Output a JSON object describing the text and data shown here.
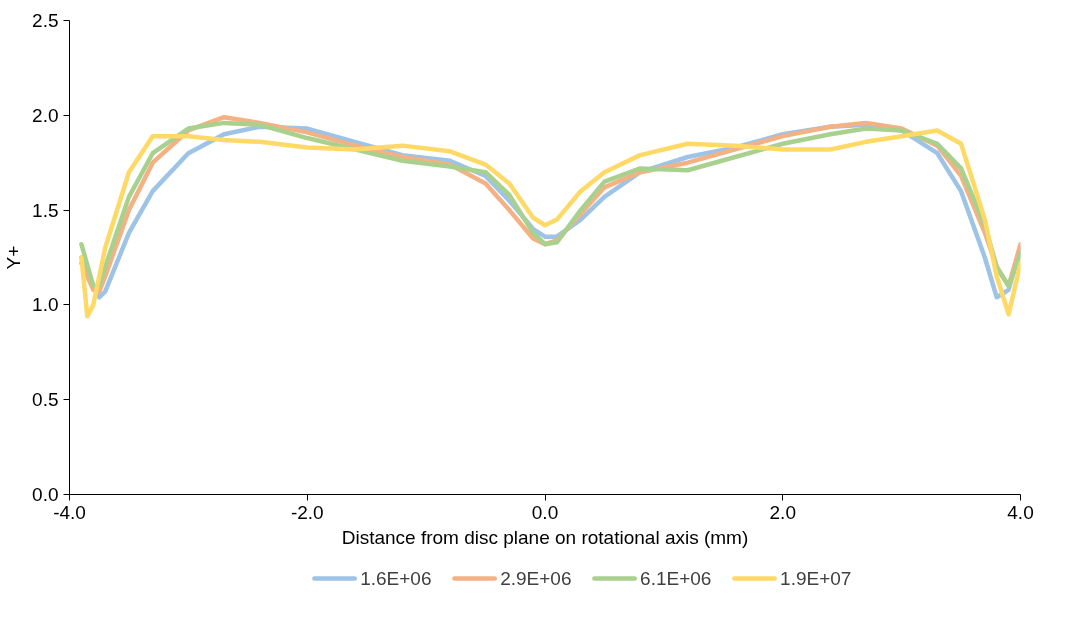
{
  "chart_data": {
    "type": "line",
    "xlabel": "Distance from disc plane on rotational axis (mm)",
    "ylabel": "Y+",
    "xlim": [
      -4,
      4
    ],
    "ylim": [
      0,
      2.5
    ],
    "xticks": [
      {
        "value": -4,
        "label": "-4.0"
      },
      {
        "value": -2,
        "label": "-2.0"
      },
      {
        "value": 0,
        "label": "0.0"
      },
      {
        "value": 2,
        "label": "2.0"
      },
      {
        "value": 4,
        "label": "4.0"
      }
    ],
    "yticks": [
      {
        "value": 0,
        "label": "0.0"
      },
      {
        "value": 0.5,
        "label": "0.5"
      },
      {
        "value": 1,
        "label": "1.0"
      },
      {
        "value": 1.5,
        "label": "1.5"
      },
      {
        "value": 2,
        "label": "2.0"
      },
      {
        "value": 2.5,
        "label": "2.5"
      }
    ],
    "grid": false,
    "legend": "bottom",
    "marker": "none",
    "line_style": "solid",
    "series": [
      {
        "name": "1.6E+06",
        "color": "#9dc3e6",
        "x": [
          -3.9,
          -3.8,
          -3.75,
          -3.7,
          -3.5,
          -3.3,
          -3.0,
          -2.7,
          -2.4,
          -2.0,
          -1.6,
          -1.2,
          -0.8,
          -0.5,
          -0.3,
          -0.1,
          0,
          0.1,
          0.3,
          0.5,
          0.8,
          1.2,
          1.6,
          2.0,
          2.4,
          2.7,
          3.0,
          3.3,
          3.5,
          3.7,
          3.8,
          3.9,
          4.0
        ],
        "values": [
          1.25,
          1.1,
          1.04,
          1.07,
          1.38,
          1.6,
          1.8,
          1.9,
          1.94,
          1.93,
          1.86,
          1.79,
          1.76,
          1.68,
          1.55,
          1.4,
          1.36,
          1.36,
          1.45,
          1.57,
          1.7,
          1.78,
          1.83,
          1.9,
          1.94,
          1.95,
          1.92,
          1.8,
          1.6,
          1.25,
          1.04,
          1.08,
          1.3
        ]
      },
      {
        "name": "2.9E+06",
        "color": "#f4b183",
        "x": [
          -3.9,
          -3.8,
          -3.75,
          -3.7,
          -3.5,
          -3.3,
          -3.0,
          -2.7,
          -2.4,
          -2.0,
          -1.6,
          -1.2,
          -0.8,
          -0.5,
          -0.3,
          -0.1,
          0,
          0.1,
          0.3,
          0.5,
          0.8,
          1.2,
          1.6,
          2.0,
          2.4,
          2.7,
          3.0,
          3.3,
          3.5,
          3.7,
          3.8,
          3.9,
          4.0
        ],
        "values": [
          1.22,
          1.08,
          1.07,
          1.15,
          1.5,
          1.75,
          1.92,
          1.99,
          1.96,
          1.91,
          1.84,
          1.78,
          1.74,
          1.64,
          1.5,
          1.35,
          1.32,
          1.34,
          1.48,
          1.62,
          1.7,
          1.75,
          1.82,
          1.89,
          1.94,
          1.96,
          1.93,
          1.84,
          1.68,
          1.38,
          1.2,
          1.1,
          1.32
        ]
      },
      {
        "name": "6.1E+06",
        "color": "#a9d18e",
        "x": [
          -3.9,
          -3.8,
          -3.75,
          -3.7,
          -3.5,
          -3.3,
          -3.0,
          -2.7,
          -2.4,
          -2.0,
          -1.6,
          -1.2,
          -0.8,
          -0.5,
          -0.3,
          -0.1,
          0,
          0.1,
          0.3,
          0.5,
          0.8,
          1.2,
          1.6,
          2.0,
          2.4,
          2.7,
          3.0,
          3.3,
          3.5,
          3.7,
          3.8,
          3.9,
          4.0
        ],
        "values": [
          1.32,
          1.1,
          1.1,
          1.2,
          1.57,
          1.8,
          1.93,
          1.96,
          1.95,
          1.88,
          1.82,
          1.76,
          1.73,
          1.7,
          1.58,
          1.38,
          1.32,
          1.33,
          1.5,
          1.65,
          1.72,
          1.71,
          1.78,
          1.85,
          1.9,
          1.93,
          1.92,
          1.85,
          1.72,
          1.42,
          1.2,
          1.1,
          1.27
        ]
      },
      {
        "name": "1.9E+07",
        "color": "#ffd966",
        "x": [
          -3.9,
          -3.85,
          -3.8,
          -3.7,
          -3.5,
          -3.3,
          -3.0,
          -2.7,
          -2.4,
          -2.0,
          -1.6,
          -1.2,
          -0.8,
          -0.5,
          -0.3,
          -0.1,
          0,
          0.1,
          0.3,
          0.5,
          0.8,
          1.2,
          1.6,
          2.0,
          2.4,
          2.7,
          3.0,
          3.3,
          3.5,
          3.7,
          3.8,
          3.9,
          4.0
        ],
        "values": [
          1.25,
          0.94,
          1.0,
          1.3,
          1.7,
          1.89,
          1.89,
          1.87,
          1.86,
          1.83,
          1.82,
          1.84,
          1.81,
          1.74,
          1.64,
          1.46,
          1.42,
          1.45,
          1.6,
          1.7,
          1.79,
          1.85,
          1.84,
          1.82,
          1.82,
          1.86,
          1.89,
          1.92,
          1.85,
          1.45,
          1.15,
          0.95,
          1.22
        ]
      }
    ]
  }
}
